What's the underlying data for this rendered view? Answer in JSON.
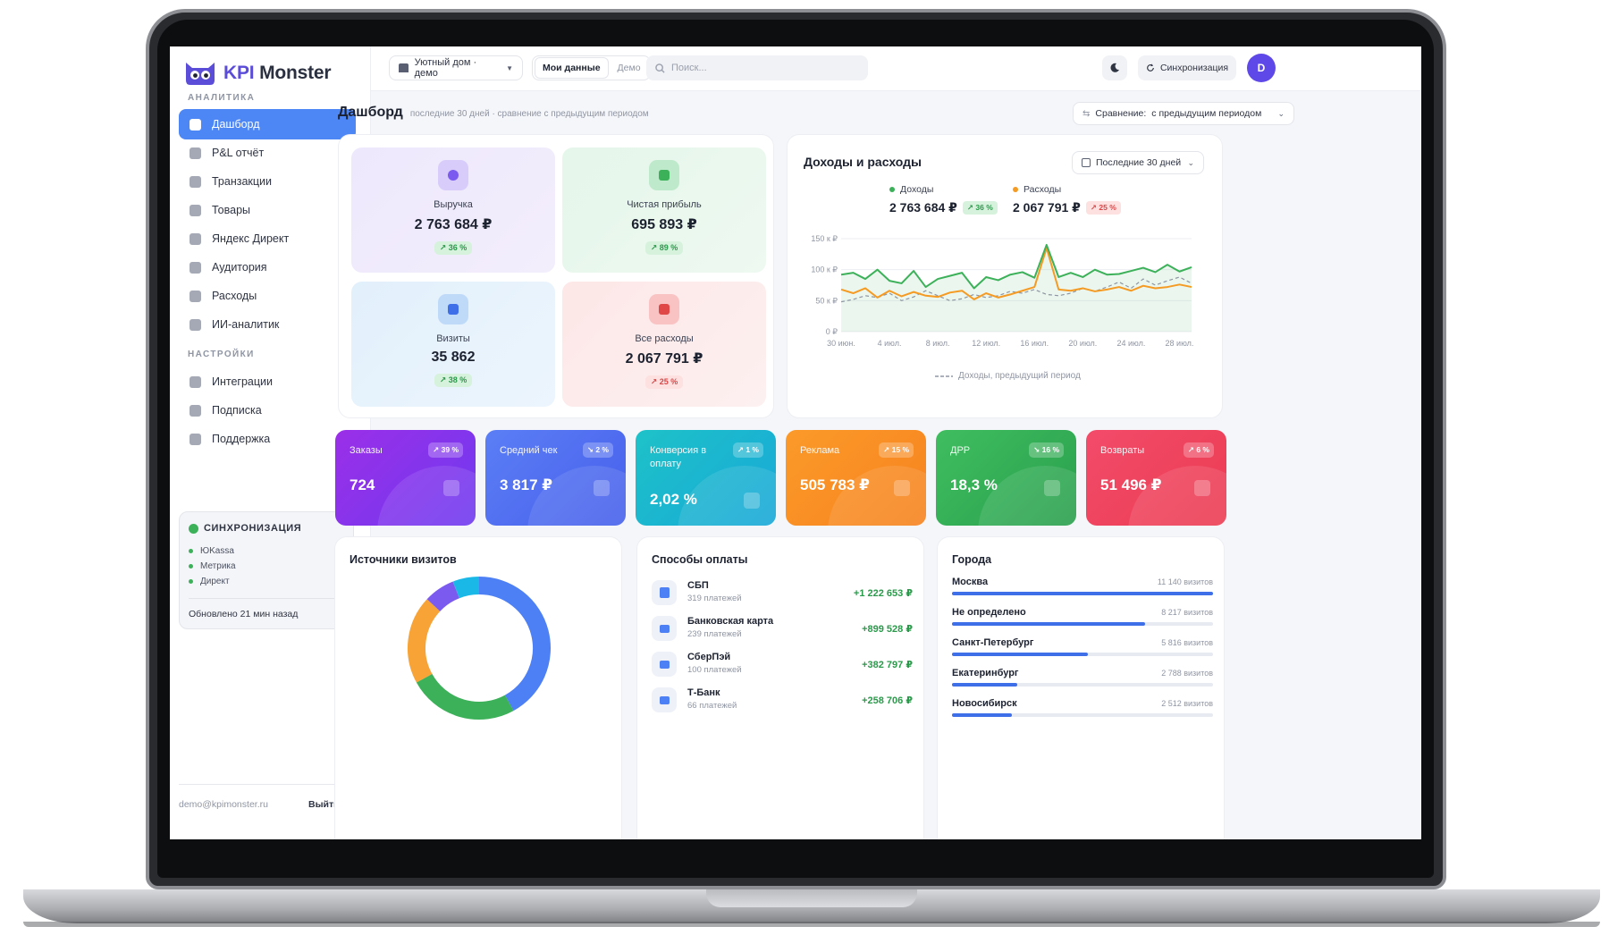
{
  "brand": {
    "name_a": "KPI",
    "name_b": "Monster"
  },
  "sidebar": {
    "section_analytics": "АНАЛИТИКА",
    "items": [
      {
        "label": "Дашборд",
        "icon": "grid-icon",
        "active": true
      },
      {
        "label": "P&L отчёт",
        "icon": "report-icon"
      },
      {
        "label": "Транзакции",
        "icon": "card-icon"
      },
      {
        "label": "Товары",
        "icon": "box-icon"
      },
      {
        "label": "Яндекс Директ",
        "icon": "target-icon"
      },
      {
        "label": "Аудитория",
        "icon": "users-icon"
      },
      {
        "label": "Расходы",
        "icon": "wallet-icon"
      },
      {
        "label": "ИИ-аналитик",
        "icon": "wand-icon"
      }
    ],
    "section_settings": "НАСТРОЙКИ",
    "settings_items": [
      {
        "label": "Интеграции",
        "icon": "plug-icon"
      },
      {
        "label": "Подписка",
        "icon": "crown-icon"
      },
      {
        "label": "Поддержка",
        "icon": "chat-icon"
      }
    ],
    "sync": {
      "title": "СИНХРОНИЗАЦИЯ",
      "rows": [
        {
          "name": "ЮKassa",
          "status": "ок"
        },
        {
          "name": "Метрика",
          "status": "ок"
        },
        {
          "name": "Директ",
          "status": "ок"
        }
      ],
      "updated": "Обновлено 21 мин назад"
    },
    "footer": {
      "email": "demo@kpimonster.ru",
      "logout": "Выйти"
    }
  },
  "topbar": {
    "shop": "Уютный дом · демо",
    "seg_my": "Мои данные",
    "seg_demo": "Демо",
    "search_placeholder": "Поиск...",
    "sync_label": "Синхронизация",
    "avatar_letter": "D"
  },
  "page": {
    "title": "Дашборд",
    "subtitle": "последние 30 дней · сравнение с предыдущим периодом",
    "compare_label": "Сравнение:",
    "compare_value": "с предыдущим периодом"
  },
  "kpi_tiles": [
    {
      "label": "Выручка",
      "value": "2 763 684 ₽",
      "change": "↗ 36 %",
      "dir": "up",
      "icon": "coin-icon"
    },
    {
      "label": "Чистая прибыль",
      "value": "695 893 ₽",
      "change": "↗ 89 %",
      "dir": "up",
      "icon": "wallet-icon"
    },
    {
      "label": "Визиты",
      "value": "35 862",
      "change": "↗ 38 %",
      "dir": "up",
      "icon": "users-icon"
    },
    {
      "label": "Все расходы",
      "value": "2 067 791 ₽",
      "change": "↗ 25 %",
      "dir": "down",
      "icon": "receipt-icon"
    }
  ],
  "income_chart": {
    "title": "Доходы и расходы",
    "range": "Последние 30 дней",
    "income_label": "Доходы",
    "income_value": "2 763 684 ₽",
    "income_change": "↗ 36 %",
    "expense_label": "Расходы",
    "expense_value": "2 067 791 ₽",
    "expense_change": "↗ 25 %",
    "prev_label": "Доходы, предыдущий период"
  },
  "chart_data": {
    "type": "line",
    "x": [
      "30 июн.",
      "1 июл.",
      "2 июл.",
      "3 июл.",
      "4 июл.",
      "5 июл.",
      "6 июл.",
      "7 июл.",
      "8 июл.",
      "9 июл.",
      "10 июл.",
      "11 июл.",
      "12 июл.",
      "13 июл.",
      "14 июл.",
      "15 июл.",
      "16 июл.",
      "17 июл.",
      "18 июл.",
      "19 июл.",
      "20 июл.",
      "21 июл.",
      "22 июл.",
      "23 июл.",
      "24 июл.",
      "25 июл.",
      "26 июл.",
      "27 июл.",
      "28 июл.",
      "29 июл."
    ],
    "xticks": [
      "30 июн.",
      "4 июл.",
      "8 июл.",
      "12 июл.",
      "16 июл.",
      "20 июл.",
      "24 июл.",
      "28 июл."
    ],
    "yticks": [
      "0 ₽",
      "50 к ₽",
      "100 к ₽",
      "150 к ₽"
    ],
    "ylim": [
      0,
      150000
    ],
    "series": [
      {
        "name": "Доходы",
        "color": "#3cb15a",
        "values": [
          92000,
          95000,
          85000,
          100000,
          82000,
          78000,
          98000,
          72000,
          85000,
          90000,
          95000,
          70000,
          88000,
          83000,
          92000,
          96000,
          87000,
          140000,
          88000,
          95000,
          88000,
          100000,
          92000,
          93000,
          98000,
          103000,
          96000,
          108000,
          97000,
          104000
        ]
      },
      {
        "name": "Расходы",
        "color": "#f59a22",
        "values": [
          68000,
          62000,
          70000,
          55000,
          66000,
          57000,
          64000,
          58000,
          56000,
          63000,
          66000,
          52000,
          62000,
          55000,
          60000,
          66000,
          72000,
          135000,
          68000,
          66000,
          70000,
          65000,
          68000,
          72000,
          66000,
          74000,
          70000,
          72000,
          76000,
          72000
        ]
      },
      {
        "name": "Доходы, предыдущий период",
        "color": "#8f95a3",
        "dashed": true,
        "values": [
          48000,
          52000,
          58000,
          55000,
          62000,
          50000,
          56000,
          66000,
          58000,
          50000,
          53000,
          60000,
          55000,
          58000,
          65000,
          62000,
          68000,
          60000,
          58000,
          62000,
          70000,
          65000,
          72000,
          80000,
          70000,
          85000,
          75000,
          82000,
          88000,
          78000
        ]
      }
    ]
  },
  "metrics": [
    {
      "label": "Заказы",
      "value": "724",
      "change": "↗ 39 %",
      "gradient": [
        "#9b2fe8",
        "#6f3af0"
      ]
    },
    {
      "label": "Средний чек",
      "value": "3 817 ₽",
      "change": "↘ 2 %",
      "gradient": [
        "#5b7ef5",
        "#4760ec"
      ]
    },
    {
      "label": "Конверсия в оплату",
      "value": "2,02 %",
      "change": "↗ 1 %",
      "gradient": [
        "#1ec2c8",
        "#18a8d8"
      ]
    },
    {
      "label": "Реклама",
      "value": "505 783 ₽",
      "change": "↗ 15 %",
      "gradient": [
        "#fb9a2a",
        "#f7831f"
      ]
    },
    {
      "label": "ДРР",
      "value": "18,3 %",
      "change": "↘ 16 %",
      "gradient": [
        "#3fbd5f",
        "#2aa04e"
      ]
    },
    {
      "label": "Возвраты",
      "value": "51 496 ₽",
      "change": "↗ 6 %",
      "gradient": [
        "#f24b6a",
        "#ec3c52"
      ]
    }
  ],
  "visits_sources": {
    "title": "Источники визитов",
    "slices": [
      {
        "value": 42,
        "color": "#4d7ff5"
      },
      {
        "value": 25,
        "color": "#3cb15a"
      },
      {
        "value": 20,
        "color": "#f7a335"
      },
      {
        "value": 7,
        "color": "#7b5af0"
      },
      {
        "value": 6,
        "color": "#19b8e6"
      }
    ]
  },
  "payments": {
    "title": "Способы оплаты",
    "rows": [
      {
        "name": "СБП",
        "count": "319 платежей",
        "amount": "+1 222 653 ₽",
        "icon": "bolt-icon"
      },
      {
        "name": "Банковская карта",
        "count": "239 платежей",
        "amount": "+899 528 ₽",
        "icon": "card-icon"
      },
      {
        "name": "СберПэй",
        "count": "100 платежей",
        "amount": "+382 797 ₽",
        "icon": "phone-icon"
      },
      {
        "name": "Т-Банк",
        "count": "66 платежей",
        "amount": "+258 706 ₽",
        "icon": "wallet-icon"
      }
    ]
  },
  "cities": {
    "title": "Города",
    "rows": [
      {
        "name": "Москва",
        "visits": "11 140 визитов",
        "fraction": 1.0
      },
      {
        "name": "Не определено",
        "visits": "8 217 визитов",
        "fraction": 0.74
      },
      {
        "name": "Санкт-Петербург",
        "visits": "5 816 визитов",
        "fraction": 0.52
      },
      {
        "name": "Екатеринбург",
        "visits": "2 788 визитов",
        "fraction": 0.25
      },
      {
        "name": "Новосибирск",
        "visits": "2 512 визитов",
        "fraction": 0.23
      }
    ]
  }
}
